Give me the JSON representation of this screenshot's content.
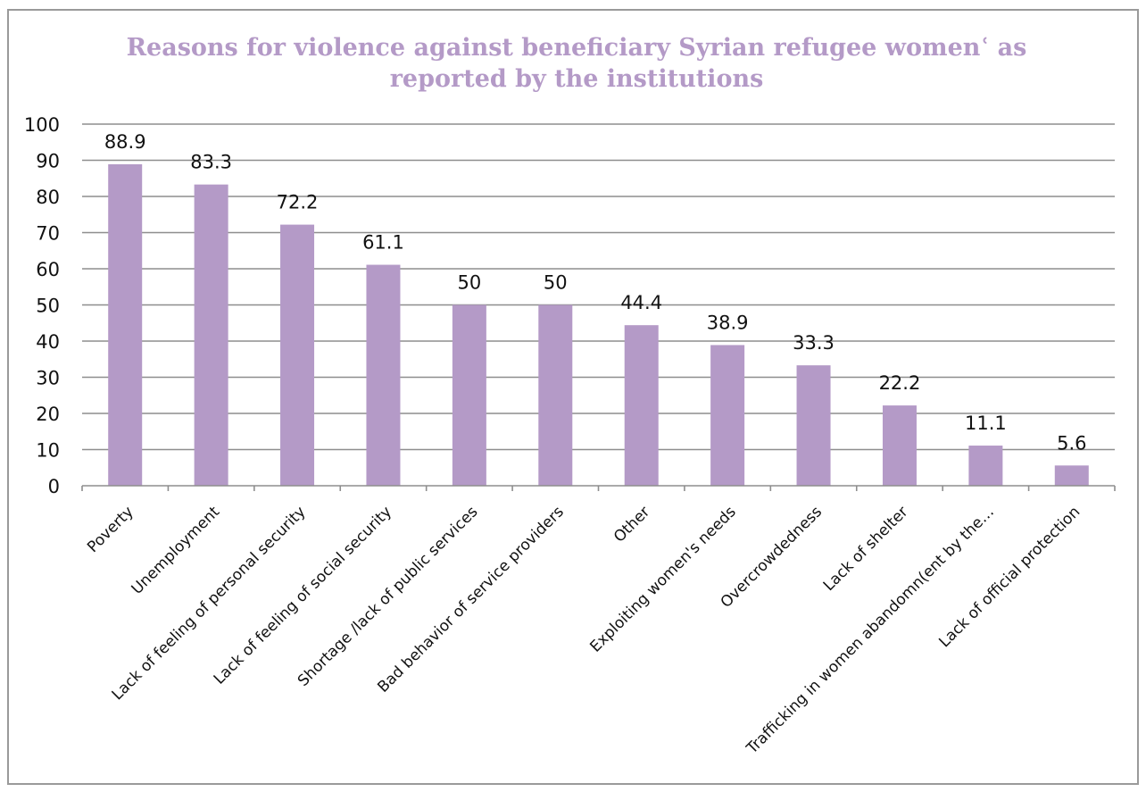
{
  "chart_data": {
    "type": "bar",
    "title_lines": [
      "Reasons for violence against beneficiary Syrian refugee womenʿ as",
      "reported by the institutions"
    ],
    "categories": [
      "Poverty",
      "Unemployment",
      "Lack of feeling of personal security",
      "Lack of feeling of social security",
      "Shortage /lack of public services",
      "Bad behavior of service providers",
      "Other",
      "Exploiting women's needs",
      "Overcrowdedness",
      "Lack of shelter",
      "Trafficking in women abandomn(ent by the…",
      "Lack of official protection"
    ],
    "values": [
      88.9,
      83.3,
      72.2,
      61.1,
      50,
      50,
      44.4,
      38.9,
      33.3,
      22.2,
      11.1,
      5.6
    ],
    "value_labels": [
      "88.9",
      "83.3",
      "72.2",
      "61.1",
      "50",
      "50",
      "44.4",
      "38.9",
      "33.3",
      "22.2",
      "11.1",
      "5.6"
    ],
    "ylim": [
      0,
      100
    ],
    "yticks": [
      "0",
      "10",
      "20",
      "30",
      "40",
      "50",
      "60",
      "70",
      "80",
      "90",
      "100"
    ],
    "xlabel": "",
    "ylabel": "",
    "grid": true,
    "legend": "none",
    "bar_color": "#b49ac7",
    "title_color": "#b49ac7"
  }
}
